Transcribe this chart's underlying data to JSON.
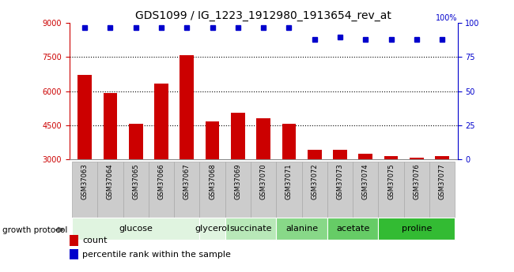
{
  "title": "GDS1099 / IG_1223_1912980_1913654_rev_at",
  "samples": [
    "GSM37063",
    "GSM37064",
    "GSM37065",
    "GSM37066",
    "GSM37067",
    "GSM37068",
    "GSM37069",
    "GSM37070",
    "GSM37071",
    "GSM37072",
    "GSM37073",
    "GSM37074",
    "GSM37075",
    "GSM37076",
    "GSM37077"
  ],
  "counts": [
    6700,
    5900,
    4550,
    6350,
    7600,
    4650,
    5050,
    4800,
    4550,
    3400,
    3400,
    3250,
    3150,
    3050,
    3150
  ],
  "percentiles": [
    97,
    97,
    97,
    97,
    97,
    97,
    97,
    97,
    97,
    88,
    90,
    88,
    88,
    88,
    88
  ],
  "bar_color": "#cc0000",
  "dot_color": "#0000cc",
  "ylim_left": [
    3000,
    9000
  ],
  "ylim_right": [
    0,
    100
  ],
  "yticks_left": [
    3000,
    4500,
    6000,
    7500,
    9000
  ],
  "yticks_right": [
    0,
    25,
    50,
    75,
    100
  ],
  "grid_values": [
    4500,
    6000,
    7500
  ],
  "groups": [
    {
      "label": "glucose",
      "start": 0,
      "end": 4,
      "color": "#e0f4e0"
    },
    {
      "label": "glycerol",
      "start": 5,
      "end": 5,
      "color": "#e0f4e0"
    },
    {
      "label": "succinate",
      "start": 6,
      "end": 7,
      "color": "#b8e8b8"
    },
    {
      "label": "alanine",
      "start": 8,
      "end": 9,
      "color": "#88d888"
    },
    {
      "label": "acetate",
      "start": 10,
      "end": 11,
      "color": "#66cc66"
    },
    {
      "label": "proline",
      "start": 12,
      "end": 14,
      "color": "#33bb33"
    }
  ],
  "sample_bg_color": "#cccccc",
  "sample_border_color": "#aaaaaa",
  "growth_protocol_label": "growth protocol",
  "legend_count_label": "count",
  "legend_percentile_label": "percentile rank within the sample",
  "title_fontsize": 10,
  "tick_fontsize": 7,
  "sample_fontsize": 6,
  "group_fontsize": 8,
  "legend_fontsize": 8
}
